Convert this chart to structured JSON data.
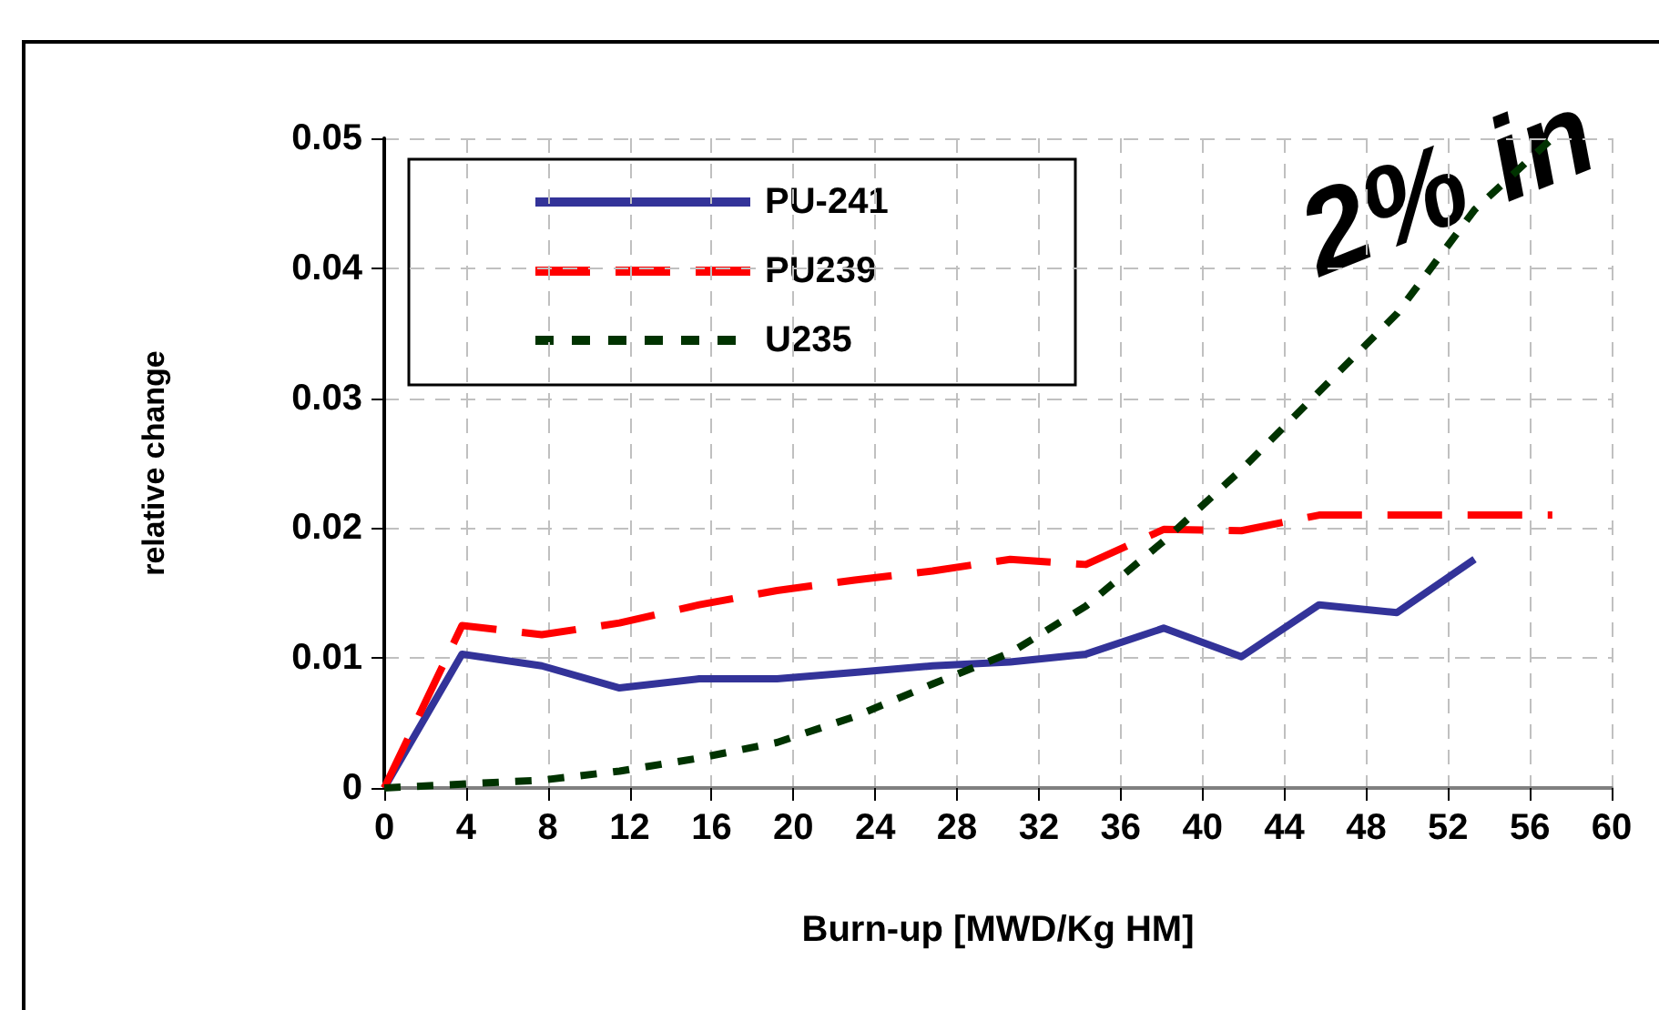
{
  "chart_data": {
    "type": "line",
    "xlabel": "Burn-up [MWD/Kg HM]",
    "ylabel": "relative change",
    "x": [
      0,
      3.8,
      7.7,
      11.5,
      15.4,
      19.2,
      23,
      26.8,
      30.6,
      34.3,
      38.1,
      41.9,
      45.7,
      49.5,
      53.3,
      57.1
    ],
    "series": [
      {
        "name": "PU-241",
        "color": "#333399",
        "line_style": "solid",
        "values": [
          0,
          0.0103,
          0.0094,
          0.0077,
          0.0084,
          0.0084,
          0.0089,
          0.0094,
          0.0097,
          0.0103,
          0.0123,
          0.0101,
          0.0141,
          0.0135,
          0.0176,
          null
        ]
      },
      {
        "name": "PU239",
        "color": "#ff0000",
        "line_style": "dashed",
        "values": [
          0,
          0.0125,
          0.0118,
          0.0127,
          0.0141,
          0.0152,
          0.016,
          0.0167,
          0.0176,
          0.0172,
          0.0199,
          0.0198,
          0.021,
          0.021,
          0.021,
          0.021
        ]
      },
      {
        "name": "U235",
        "color": "#003300",
        "line_style": "dotted",
        "values": [
          0,
          0.0003,
          0.0006,
          0.0013,
          0.0023,
          0.0035,
          0.0055,
          0.008,
          0.0104,
          0.014,
          0.019,
          0.0245,
          0.0305,
          0.0365,
          0.0445,
          0.05
        ]
      }
    ],
    "xlim": [
      0,
      60
    ],
    "xticks": [
      0,
      4,
      8,
      12,
      16,
      20,
      24,
      28,
      32,
      36,
      40,
      44,
      48,
      52,
      56,
      60
    ],
    "ylim": [
      0,
      0.05
    ],
    "yticks": [
      0,
      0.01,
      0.02,
      0.03,
      0.04,
      0.05
    ],
    "grid": true,
    "legend": "top left",
    "marker": "none",
    "annotations": [
      "2% in"
    ]
  }
}
